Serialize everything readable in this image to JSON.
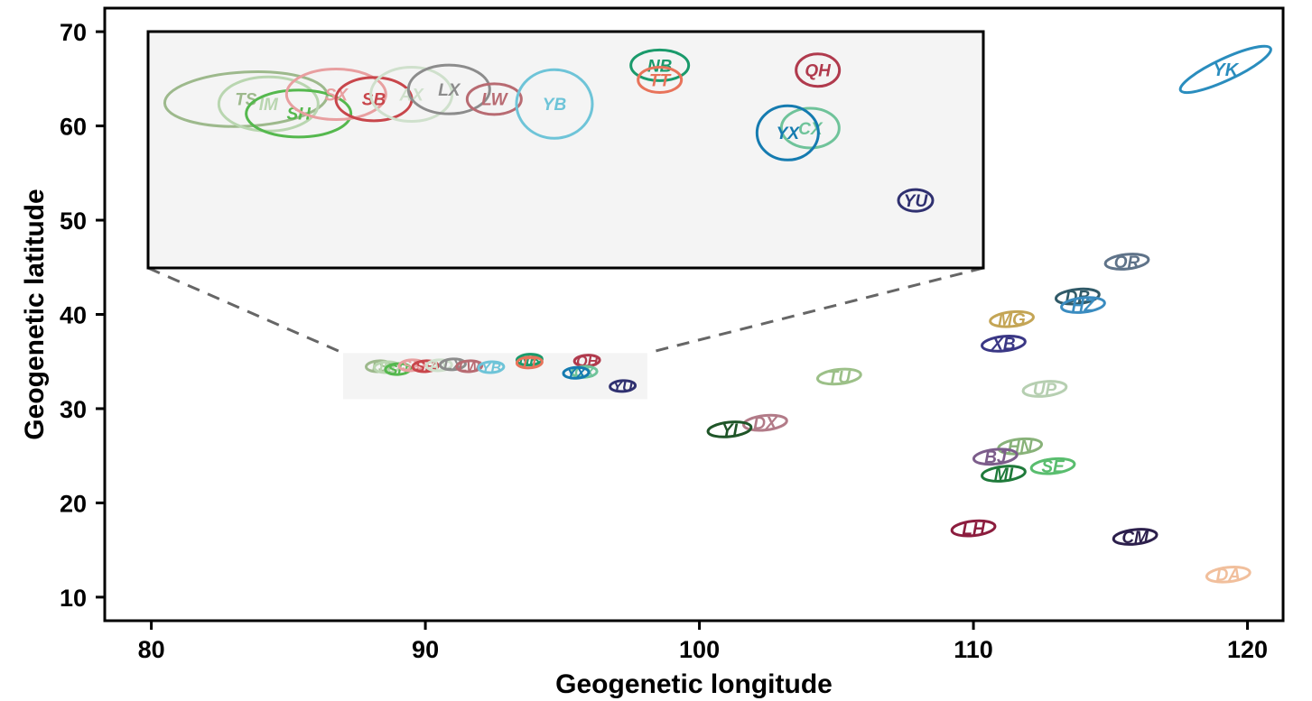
{
  "chart_data": {
    "type": "scatter",
    "title": "",
    "xlabel": "Geogenetic longitude",
    "ylabel": "Geogenetic latitude",
    "xlim": [
      78.3,
      121.3
    ],
    "ylim": [
      7.5,
      72.5
    ],
    "xticks": [
      "80",
      "90",
      "100",
      "110",
      "120"
    ],
    "yticks": [
      "10",
      "20",
      "30",
      "40",
      "50",
      "60",
      "70"
    ],
    "grid": false,
    "legend": "none",
    "inset": {
      "source_xlim": [
        87.0,
        98.1
      ],
      "source_ylim": [
        31.0,
        35.9
      ],
      "background": "#f4f4f4",
      "points": [
        {
          "label": "TS",
          "x": 88.3,
          "y": 34.5,
          "color": "#9db98c"
        },
        {
          "label": "IM",
          "x": 88.6,
          "y": 34.4,
          "color": "#b9d6b0"
        },
        {
          "label": "SH",
          "x": 89.0,
          "y": 34.2,
          "color": "#55b84e"
        },
        {
          "label": "SX",
          "x": 89.5,
          "y": 34.6,
          "color": "#e89fa0"
        },
        {
          "label": "SB",
          "x": 90.0,
          "y": 34.5,
          "color": "#c8464b"
        },
        {
          "label": "AX",
          "x": 90.5,
          "y": 34.6,
          "color": "#cfe0cc"
        },
        {
          "label": "LX",
          "x": 91.0,
          "y": 34.7,
          "color": "#8c8c8c"
        },
        {
          "label": "LW",
          "x": 91.6,
          "y": 34.5,
          "color": "#b86b72"
        },
        {
          "label": "YB",
          "x": 92.4,
          "y": 34.4,
          "color": "#6ec4d8"
        },
        {
          "label": "NB",
          "x": 93.8,
          "y": 35.2,
          "color": "#1a9a6b"
        },
        {
          "label": "TT",
          "x": 93.8,
          "y": 34.9,
          "color": "#e8735a"
        },
        {
          "label": "QH",
          "x": 95.9,
          "y": 35.1,
          "color": "#b03a4d"
        },
        {
          "label": "CX",
          "x": 95.8,
          "y": 33.9,
          "color": "#6fc39a"
        },
        {
          "label": "YX",
          "x": 95.5,
          "y": 33.8,
          "color": "#157bb0"
        },
        {
          "label": "YU",
          "x": 97.2,
          "y": 32.4,
          "color": "#2f3070"
        }
      ]
    },
    "points": [
      {
        "label": "YK",
        "x": 119.2,
        "y": 66.0,
        "color": "#2a8dbe"
      },
      {
        "label": "OR",
        "x": 115.6,
        "y": 45.6,
        "color": "#5f7389"
      },
      {
        "label": "DB",
        "x": 113.8,
        "y": 41.9,
        "color": "#305a68"
      },
      {
        "label": "HZ",
        "x": 114.0,
        "y": 41.0,
        "color": "#3a8cc0"
      },
      {
        "label": "MG",
        "x": 111.4,
        "y": 39.5,
        "color": "#c4a555"
      },
      {
        "label": "XB",
        "x": 111.1,
        "y": 36.9,
        "color": "#3a3785"
      },
      {
        "label": "TU",
        "x": 105.1,
        "y": 33.4,
        "color": "#9cc088"
      },
      {
        "label": "UP",
        "x": 112.6,
        "y": 32.1,
        "color": "#b6cfb1"
      },
      {
        "label": "DX",
        "x": 102.4,
        "y": 28.5,
        "color": "#b27b88"
      },
      {
        "label": "YI",
        "x": 101.1,
        "y": 27.8,
        "color": "#1f5528"
      },
      {
        "label": "HN",
        "x": 111.7,
        "y": 26.0,
        "color": "#88b279"
      },
      {
        "label": "BJ",
        "x": 110.8,
        "y": 24.9,
        "color": "#7c5d8b"
      },
      {
        "label": "SE",
        "x": 112.9,
        "y": 23.9,
        "color": "#59bd6e"
      },
      {
        "label": "MI",
        "x": 111.1,
        "y": 23.1,
        "color": "#1f7a3a"
      },
      {
        "label": "LH",
        "x": 110.0,
        "y": 17.3,
        "color": "#8c1d3e"
      },
      {
        "label": "CM",
        "x": 115.9,
        "y": 16.4,
        "color": "#2c1f4c"
      },
      {
        "label": "DA",
        "x": 119.3,
        "y": 12.4,
        "color": "#f1bf9c"
      }
    ]
  }
}
